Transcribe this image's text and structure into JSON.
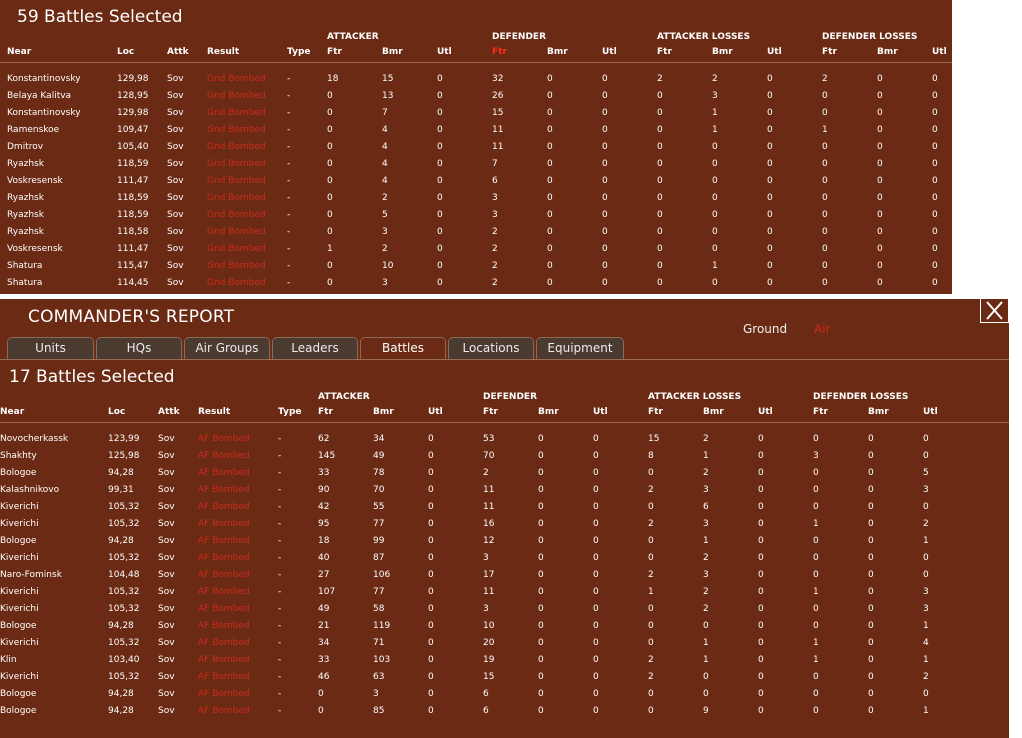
{
  "top_panel": {
    "title": "59 Battles Selected",
    "group_headers": [
      "ATTACKER",
      "DEFENDER",
      "ATTACKER LOSSES",
      "DEFENDER LOSSES"
    ],
    "columns": [
      "Near",
      "Loc",
      "Attk",
      "Result",
      "Type",
      "Ftr",
      "Bmr",
      "Utl",
      "Ftr",
      "Bmr",
      "Utl",
      "Ftr",
      "Bmr",
      "Utl",
      "Ftr",
      "Bmr",
      "Utl"
    ],
    "selected_column": 8,
    "rows": [
      [
        "Konstantinovsky",
        "129,98",
        "Sov",
        "Gnd Bombed",
        "-",
        "18",
        "15",
        "0",
        "32",
        "0",
        "0",
        "2",
        "2",
        "0",
        "2",
        "0",
        "0"
      ],
      [
        "Belaya Kalitva",
        "128,95",
        "Sov",
        "Gnd Bombed",
        "-",
        "0",
        "13",
        "0",
        "26",
        "0",
        "0",
        "0",
        "3",
        "0",
        "0",
        "0",
        "0"
      ],
      [
        "Konstantinovsky",
        "129,98",
        "Sov",
        "Gnd Bombed",
        "-",
        "0",
        "7",
        "0",
        "15",
        "0",
        "0",
        "0",
        "1",
        "0",
        "0",
        "0",
        "0"
      ],
      [
        "Ramenskoe",
        "109,47",
        "Sov",
        "Gnd Bombed",
        "-",
        "0",
        "4",
        "0",
        "11",
        "0",
        "0",
        "0",
        "1",
        "0",
        "1",
        "0",
        "0"
      ],
      [
        "Dmitrov",
        "105,40",
        "Sov",
        "Gnd Bombed",
        "-",
        "0",
        "4",
        "0",
        "11",
        "0",
        "0",
        "0",
        "0",
        "0",
        "0",
        "0",
        "0"
      ],
      [
        "Ryazhsk",
        "118,59",
        "Sov",
        "Gnd Bombed",
        "-",
        "0",
        "4",
        "0",
        "7",
        "0",
        "0",
        "0",
        "0",
        "0",
        "0",
        "0",
        "0"
      ],
      [
        "Voskresensk",
        "111,47",
        "Sov",
        "Gnd Bombed",
        "-",
        "0",
        "4",
        "0",
        "6",
        "0",
        "0",
        "0",
        "0",
        "0",
        "0",
        "0",
        "0"
      ],
      [
        "Ryazhsk",
        "118,59",
        "Sov",
        "Gnd Bombed",
        "-",
        "0",
        "2",
        "0",
        "3",
        "0",
        "0",
        "0",
        "0",
        "0",
        "0",
        "0",
        "0"
      ],
      [
        "Ryazhsk",
        "118,59",
        "Sov",
        "Gnd Bombed",
        "-",
        "0",
        "5",
        "0",
        "3",
        "0",
        "0",
        "0",
        "0",
        "0",
        "0",
        "0",
        "0"
      ],
      [
        "Ryazhsk",
        "118,58",
        "Sov",
        "Gnd Bombed",
        "-",
        "0",
        "3",
        "0",
        "2",
        "0",
        "0",
        "0",
        "0",
        "0",
        "0",
        "0",
        "0"
      ],
      [
        "Voskresensk",
        "111,47",
        "Sov",
        "Gnd Bombed",
        "-",
        "1",
        "2",
        "0",
        "2",
        "0",
        "0",
        "0",
        "0",
        "0",
        "0",
        "0",
        "0"
      ],
      [
        "Shatura",
        "115,47",
        "Sov",
        "Gnd Bombed",
        "-",
        "0",
        "10",
        "0",
        "2",
        "0",
        "0",
        "0",
        "1",
        "0",
        "0",
        "0",
        "0"
      ],
      [
        "Shatura",
        "114,45",
        "Sov",
        "Gnd Bombed",
        "-",
        "0",
        "3",
        "0",
        "2",
        "0",
        "0",
        "0",
        "0",
        "0",
        "0",
        "0",
        "0"
      ]
    ]
  },
  "report": {
    "title": "COMMANDER'S REPORT",
    "mode_ground": "Ground",
    "mode_air": "Air",
    "tabs": [
      "Units",
      "HQs",
      "Air Groups",
      "Leaders",
      "Battles",
      "Locations",
      "Equipment"
    ],
    "active_tab": 4
  },
  "bottom_panel": {
    "title": "17 Battles Selected",
    "group_headers": [
      "ATTACKER",
      "DEFENDER",
      "ATTACKER LOSSES",
      "DEFENDER LOSSES"
    ],
    "columns": [
      "Near",
      "Loc",
      "Attk",
      "Result",
      "Type",
      "Ftr",
      "Bmr",
      "Utl",
      "Ftr",
      "Bmr",
      "Utl",
      "Ftr",
      "Bmr",
      "Utl",
      "Ftr",
      "Bmr",
      "Utl"
    ],
    "rows": [
      [
        "Novocherkassk",
        "123,99",
        "Sov",
        "AF Bombed",
        "-",
        "62",
        "34",
        "0",
        "53",
        "0",
        "0",
        "15",
        "2",
        "0",
        "0",
        "0",
        "0"
      ],
      [
        "Shakhty",
        "125,98",
        "Sov",
        "AF Bombed",
        "-",
        "145",
        "49",
        "0",
        "70",
        "0",
        "0",
        "8",
        "1",
        "0",
        "3",
        "0",
        "0"
      ],
      [
        "Bologoe",
        "94,28",
        "Sov",
        "AF Bombed",
        "-",
        "33",
        "78",
        "0",
        "2",
        "0",
        "0",
        "0",
        "2",
        "0",
        "0",
        "0",
        "5"
      ],
      [
        "Kalashnikovo",
        "99,31",
        "Sov",
        "AF Bombed",
        "-",
        "90",
        "70",
        "0",
        "11",
        "0",
        "0",
        "2",
        "3",
        "0",
        "0",
        "0",
        "3"
      ],
      [
        "Kiverichi",
        "105,32",
        "Sov",
        "AF Bombed",
        "-",
        "42",
        "55",
        "0",
        "11",
        "0",
        "0",
        "0",
        "6",
        "0",
        "0",
        "0",
        "0"
      ],
      [
        "Kiverichi",
        "105,32",
        "Sov",
        "AF Bombed",
        "-",
        "95",
        "77",
        "0",
        "16",
        "0",
        "0",
        "2",
        "3",
        "0",
        "1",
        "0",
        "2"
      ],
      [
        "Bologoe",
        "94,28",
        "Sov",
        "AF Bombed",
        "-",
        "18",
        "99",
        "0",
        "12",
        "0",
        "0",
        "0",
        "1",
        "0",
        "0",
        "0",
        "1"
      ],
      [
        "Kiverichi",
        "105,32",
        "Sov",
        "AF Bombed",
        "-",
        "40",
        "87",
        "0",
        "3",
        "0",
        "0",
        "0",
        "2",
        "0",
        "0",
        "0",
        "0"
      ],
      [
        "Naro-Fominsk",
        "104,48",
        "Sov",
        "AF Bombed",
        "-",
        "27",
        "106",
        "0",
        "17",
        "0",
        "0",
        "2",
        "3",
        "0",
        "0",
        "0",
        "0"
      ],
      [
        "Kiverichi",
        "105,32",
        "Sov",
        "AF Bombed",
        "-",
        "107",
        "77",
        "0",
        "11",
        "0",
        "0",
        "1",
        "2",
        "0",
        "1",
        "0",
        "3"
      ],
      [
        "Kiverichi",
        "105,32",
        "Sov",
        "AF Bombed",
        "-",
        "49",
        "58",
        "0",
        "3",
        "0",
        "0",
        "0",
        "2",
        "0",
        "0",
        "0",
        "3"
      ],
      [
        "Bologoe",
        "94,28",
        "Sov",
        "AF Bombed",
        "-",
        "21",
        "119",
        "0",
        "10",
        "0",
        "0",
        "0",
        "0",
        "0",
        "0",
        "0",
        "1"
      ],
      [
        "Kiverichi",
        "105,32",
        "Sov",
        "AF Bombed",
        "-",
        "34",
        "71",
        "0",
        "20",
        "0",
        "0",
        "0",
        "1",
        "0",
        "1",
        "0",
        "4"
      ],
      [
        "Klin",
        "103,40",
        "Sov",
        "AF Bombed",
        "-",
        "33",
        "103",
        "0",
        "19",
        "0",
        "0",
        "2",
        "1",
        "0",
        "1",
        "0",
        "1"
      ],
      [
        "Kiverichi",
        "105,32",
        "Sov",
        "AF Bombed",
        "-",
        "46",
        "63",
        "0",
        "15",
        "0",
        "0",
        "2",
        "0",
        "0",
        "0",
        "0",
        "2"
      ],
      [
        "Bologoe",
        "94,28",
        "Sov",
        "AF Bombed",
        "-",
        "0",
        "3",
        "0",
        "6",
        "0",
        "0",
        "0",
        "0",
        "0",
        "0",
        "0",
        "0"
      ],
      [
        "Bologoe",
        "94,28",
        "Sov",
        "AF Bombed",
        "-",
        "0",
        "85",
        "0",
        "6",
        "0",
        "0",
        "0",
        "9",
        "0",
        "0",
        "0",
        "1"
      ]
    ]
  },
  "colors": {
    "panel_bg": "#6b2a14",
    "result_red": "#cc2a1e",
    "selected_header": "#ff2a1e",
    "tab_bg": "#4a3a30"
  }
}
